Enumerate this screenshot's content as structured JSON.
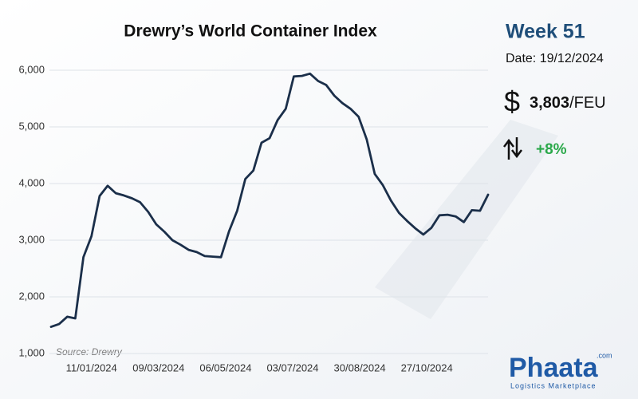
{
  "chart_data": {
    "type": "line",
    "title": "Drewry’s World Container Index",
    "x": [
      "07/12/2023",
      "14/12/2023",
      "21/12/2023",
      "28/12/2023",
      "04/01/2024",
      "11/01/2024",
      "18/01/2024",
      "25/01/2024",
      "01/02/2024",
      "08/02/2024",
      "15/02/2024",
      "22/02/2024",
      "29/02/2024",
      "07/03/2024",
      "14/03/2024",
      "21/03/2024",
      "28/03/2024",
      "04/04/2024",
      "11/04/2024",
      "18/04/2024",
      "25/04/2024",
      "02/05/2024",
      "09/05/2024",
      "16/05/2024",
      "23/05/2024",
      "30/05/2024",
      "06/06/2024",
      "13/06/2024",
      "20/06/2024",
      "27/06/2024",
      "04/07/2024",
      "11/07/2024",
      "18/07/2024",
      "25/07/2024",
      "01/08/2024",
      "08/08/2024",
      "15/08/2024",
      "22/08/2024",
      "29/08/2024",
      "05/09/2024",
      "12/09/2024",
      "19/09/2024",
      "26/09/2024",
      "03/10/2024",
      "10/10/2024",
      "17/10/2024",
      "24/10/2024",
      "31/10/2024",
      "07/11/2024",
      "14/11/2024",
      "21/11/2024",
      "28/11/2024",
      "05/12/2024",
      "12/12/2024",
      "19/12/2024"
    ],
    "series": [
      {
        "color": "#1b2f4a",
        "values": [
          1470,
          1520,
          1650,
          1620,
          2700,
          3070,
          3780,
          3960,
          3830,
          3790,
          3740,
          3670,
          3500,
          3280,
          3150,
          3000,
          2920,
          2830,
          2790,
          2720,
          2710,
          2700,
          3160,
          3520,
          4080,
          4230,
          4720,
          4800,
          5120,
          5320,
          5890,
          5900,
          5940,
          5810,
          5740,
          5550,
          5420,
          5320,
          5180,
          4780,
          4170,
          3970,
          3700,
          3480,
          3340,
          3210,
          3100,
          3220,
          3440,
          3450,
          3420,
          3320,
          3530,
          3520,
          3803
        ]
      }
    ],
    "xlim": [
      "07/12/2023",
      "19/12/2024"
    ],
    "xticks": [
      "11/01/2024",
      "09/03/2024",
      "06/05/2024",
      "03/07/2024",
      "30/08/2024",
      "27/10/2024"
    ],
    "ylim": [
      1000,
      6000
    ],
    "yticks": [
      {
        "value": 1000,
        "label": "1,000"
      },
      {
        "value": 2000,
        "label": "2,000"
      },
      {
        "value": 3000,
        "label": "3,000"
      },
      {
        "value": 4000,
        "label": "4,000"
      },
      {
        "value": 5000,
        "label": "5,000"
      },
      {
        "value": 6000,
        "label": "6,000"
      }
    ],
    "grid": true,
    "source": "Source: Drewry"
  },
  "panel": {
    "week": "Week 51",
    "date": "Date: 19/12/2024",
    "price": "3,803",
    "unit": "/FEU",
    "change": "+8%"
  },
  "logo": {
    "name": "Phaata",
    "domain": ".com",
    "tagline": "Logistics Marketplace"
  }
}
